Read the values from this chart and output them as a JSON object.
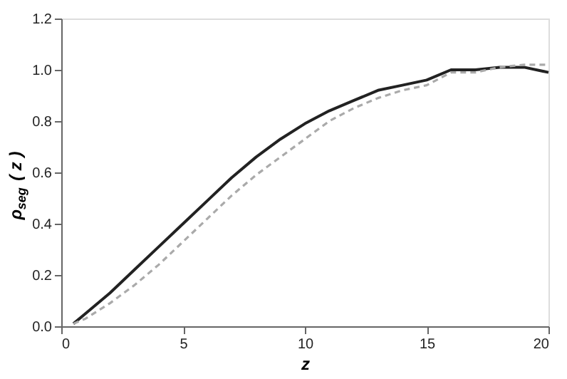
{
  "chart_data": {
    "type": "line",
    "xlabel": "z",
    "ylabel": "ρ$_{seg}$ ( z )",
    "xlim": [
      0,
      20
    ],
    "xticks": [
      0,
      5,
      10,
      15,
      20
    ],
    "ylim": [
      0,
      1.2
    ],
    "yticks": [
      {
        "value": 0,
        "label": "0.0"
      },
      {
        "value": 0.2,
        "label": "0.2"
      },
      {
        "value": 0.4,
        "label": "0.4"
      },
      {
        "value": 0.6,
        "label": "0.6"
      },
      {
        "value": 0.8,
        "label": "0.8"
      },
      {
        "value": 1.0,
        "label": "1.0"
      },
      {
        "value": 1.2,
        "label": "1.2"
      }
    ],
    "x": [
      0.5,
      1,
      2,
      3,
      4,
      5,
      6,
      7,
      8,
      9,
      10,
      11,
      12,
      13,
      14,
      15,
      16,
      17,
      18,
      19,
      20
    ],
    "grid": false,
    "marker": "none",
    "series": [
      {
        "color": "#222222",
        "line_style": "solid",
        "values": [
          0.01,
          0.05,
          0.13,
          0.22,
          0.31,
          0.4,
          0.49,
          0.58,
          0.66,
          0.73,
          0.79,
          0.84,
          0.88,
          0.92,
          0.94,
          0.96,
          1.0,
          1.0,
          1.01,
          1.01,
          0.99
        ]
      },
      {
        "color": "#aaaaaa",
        "line_style": "dashed",
        "values": [
          0.01,
          0.03,
          0.09,
          0.16,
          0.24,
          0.33,
          0.42,
          0.51,
          0.59,
          0.66,
          0.73,
          0.8,
          0.85,
          0.89,
          0.92,
          0.94,
          0.99,
          0.99,
          1.01,
          1.02,
          1.02
        ]
      }
    ]
  }
}
